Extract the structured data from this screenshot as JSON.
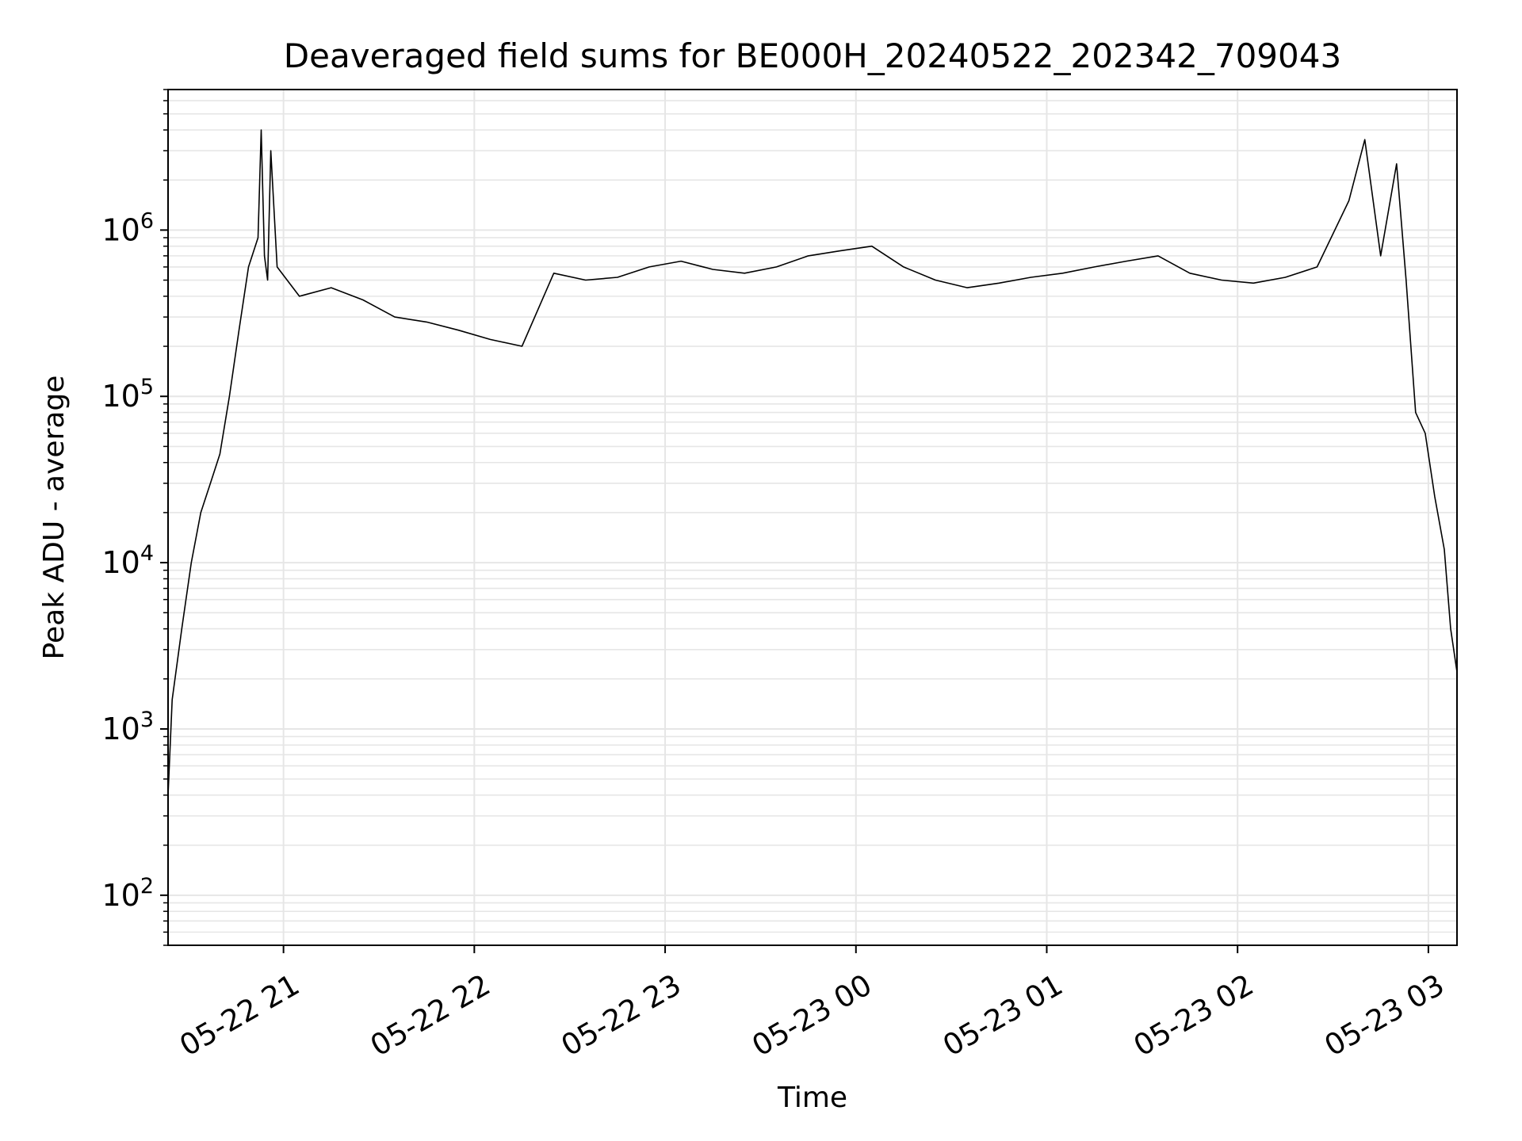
{
  "chart_data": {
    "type": "line",
    "title": "Deaveraged field sums for BE000H_20240522_202342_709043",
    "xlabel": "Time",
    "ylabel": "Peak ADU - average",
    "xscale": "time",
    "yscale": "log",
    "grid": true,
    "legend": "none",
    "xlim": [
      "2024-05-22 20:23:42",
      "2024-05-23 03:09:00"
    ],
    "ylim": [
      50,
      7000000
    ],
    "x_ticks": [
      {
        "value": "2024-05-22 21:00",
        "label": "05-22 21"
      },
      {
        "value": "2024-05-22 22:00",
        "label": "05-22 22"
      },
      {
        "value": "2024-05-22 23:00",
        "label": "05-22 23"
      },
      {
        "value": "2024-05-23 00:00",
        "label": "05-23 00"
      },
      {
        "value": "2024-05-23 01:00",
        "label": "05-23 01"
      },
      {
        "value": "2024-05-23 02:00",
        "label": "05-23 02"
      },
      {
        "value": "2024-05-23 03:00",
        "label": "05-23 03"
      }
    ],
    "y_ticks": [
      {
        "value": 100,
        "base": "10",
        "exp": "2"
      },
      {
        "value": 1000,
        "base": "10",
        "exp": "3"
      },
      {
        "value": 10000,
        "base": "10",
        "exp": "4"
      },
      {
        "value": 100000,
        "base": "10",
        "exp": "5"
      },
      {
        "value": 1000000,
        "base": "10",
        "exp": "6"
      }
    ],
    "series": [
      {
        "color": "#000000",
        "x": [
          "2024-05-22 20:23:42",
          "2024-05-22 20:25:00",
          "2024-05-22 20:28:00",
          "2024-05-22 20:31:00",
          "2024-05-22 20:34:00",
          "2024-05-22 20:37:00",
          "2024-05-22 20:40:00",
          "2024-05-22 20:43:00",
          "2024-05-22 20:46:00",
          "2024-05-22 20:49:00",
          "2024-05-22 20:52:00",
          "2024-05-22 20:53:00",
          "2024-05-22 20:54:00",
          "2024-05-22 20:55:00",
          "2024-05-22 20:56:00",
          "2024-05-22 20:58:00",
          "2024-05-22 21:05:00",
          "2024-05-22 21:15:00",
          "2024-05-22 21:25:00",
          "2024-05-22 21:35:00",
          "2024-05-22 21:45:00",
          "2024-05-22 21:55:00",
          "2024-05-22 22:05:00",
          "2024-05-22 22:15:00",
          "2024-05-22 22:25:00",
          "2024-05-22 22:35:00",
          "2024-05-22 22:45:00",
          "2024-05-22 22:55:00",
          "2024-05-22 23:05:00",
          "2024-05-22 23:15:00",
          "2024-05-22 23:25:00",
          "2024-05-22 23:35:00",
          "2024-05-22 23:45:00",
          "2024-05-22 23:55:00",
          "2024-05-23 00:05:00",
          "2024-05-23 00:15:00",
          "2024-05-23 00:25:00",
          "2024-05-23 00:35:00",
          "2024-05-23 00:45:00",
          "2024-05-23 00:55:00",
          "2024-05-23 01:05:00",
          "2024-05-23 01:15:00",
          "2024-05-23 01:25:00",
          "2024-05-23 01:35:00",
          "2024-05-23 01:45:00",
          "2024-05-23 01:55:00",
          "2024-05-23 02:05:00",
          "2024-05-23 02:15:00",
          "2024-05-23 02:25:00",
          "2024-05-23 02:35:00",
          "2024-05-23 02:40:00",
          "2024-05-23 02:45:00",
          "2024-05-23 02:50:00",
          "2024-05-23 02:53:00",
          "2024-05-23 02:56:00",
          "2024-05-23 02:59:00",
          "2024-05-23 03:02:00",
          "2024-05-23 03:05:00",
          "2024-05-23 03:07:00",
          "2024-05-23 03:09:00"
        ],
        "y": [
          400,
          1500,
          4000,
          10000,
          20000,
          30000,
          45000,
          100000,
          250000,
          600000,
          900000,
          4000000,
          700000,
          500000,
          3000000,
          600000,
          400000,
          450000,
          380000,
          300000,
          280000,
          250000,
          220000,
          200000,
          550000,
          500000,
          520000,
          600000,
          650000,
          580000,
          550000,
          600000,
          700000,
          750000,
          800000,
          600000,
          500000,
          450000,
          480000,
          520000,
          550000,
          600000,
          650000,
          700000,
          550000,
          500000,
          480000,
          520000,
          600000,
          1500000,
          3500000,
          700000,
          2500000,
          500000,
          80000,
          60000,
          25000,
          12000,
          4000,
          2200
        ]
      }
    ]
  }
}
